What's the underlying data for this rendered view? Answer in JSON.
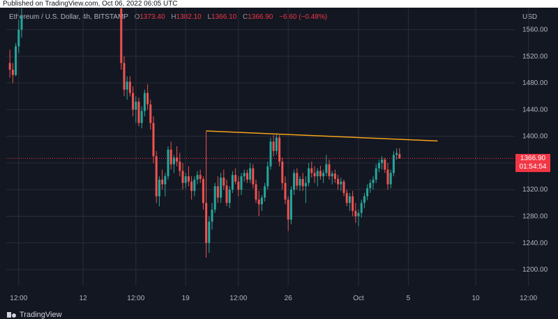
{
  "header": {
    "published": "Published on TradingView.com, Oct 06, 2022 06:05 UTC"
  },
  "legend": {
    "symbol": "Ethereum / U.S. Dollar, 4h, BITSTAMP",
    "open_label": "O",
    "open": "1373.40",
    "high_label": "H",
    "high": "1382.10",
    "low_label": "L",
    "low": "1366.10",
    "close_label": "C",
    "close": "1366.90",
    "change": "−6.60 (−0.48%)"
  },
  "axis": {
    "currency": "USD"
  },
  "price_tag": {
    "price": "1366.90",
    "countdown": "01:54:54"
  },
  "brand": {
    "name": "TradingView"
  },
  "colors": {
    "background": "#131722",
    "grid": "#2a2e39",
    "up": "#26a69a",
    "down": "#ef5350",
    "trendline": "#f7a21b",
    "price_line": "#f23645",
    "axis_text": "#b2b5be"
  },
  "chart_data": {
    "type": "candlestick",
    "yaxis": {
      "ticks": [
        1200,
        1240,
        1280,
        1320,
        1360,
        1400,
        1440,
        1480,
        1520,
        1560
      ],
      "tick_labels": [
        "1200.00",
        "1240.00",
        "1280.00",
        "1320.00",
        "1360.00",
        "1400.00",
        "1440.00",
        "1480.00",
        "1520.00",
        "1560.00"
      ],
      "range": [
        1176,
        1592
      ]
    },
    "xaxis": {
      "tick_labels": [
        "12:00",
        "12",
        "12:00",
        "19",
        "12:00",
        "26",
        "Oct",
        "5",
        "10",
        "12:00"
      ],
      "tick_bar_index": [
        4,
        26,
        44,
        61,
        79,
        96,
        120,
        137,
        160,
        178
      ]
    },
    "last_price": 1366.9,
    "trendline": {
      "from": [
        68,
        1408
      ],
      "to": [
        147,
        1393
      ]
    },
    "candles": [
      [
        1,
        1510,
        1530,
        1488,
        1500
      ],
      [
        2,
        1500,
        1510,
        1480,
        1492
      ],
      [
        3,
        1492,
        1540,
        1490,
        1535
      ],
      [
        4,
        1535,
        1575,
        1525,
        1560
      ],
      [
        5,
        1560,
        1592,
        1548,
        1580
      ],
      [
        39,
        1592,
        1592,
        1500,
        1510
      ],
      [
        40,
        1510,
        1520,
        1460,
        1470
      ],
      [
        41,
        1470,
        1490,
        1455,
        1482
      ],
      [
        42,
        1482,
        1490,
        1460,
        1465
      ],
      [
        43,
        1465,
        1475,
        1430,
        1440
      ],
      [
        44,
        1440,
        1460,
        1420,
        1452
      ],
      [
        45,
        1452,
        1458,
        1415,
        1420
      ],
      [
        46,
        1420,
        1445,
        1412,
        1438
      ],
      [
        47,
        1438,
        1470,
        1430,
        1465
      ],
      [
        48,
        1465,
        1478,
        1440,
        1448
      ],
      [
        49,
        1448,
        1455,
        1410,
        1420
      ],
      [
        50,
        1420,
        1430,
        1360,
        1370
      ],
      [
        51,
        1370,
        1378,
        1300,
        1310
      ],
      [
        52,
        1310,
        1340,
        1295,
        1335
      ],
      [
        53,
        1335,
        1350,
        1320,
        1328
      ],
      [
        54,
        1328,
        1345,
        1310,
        1340
      ],
      [
        55,
        1340,
        1385,
        1335,
        1380
      ],
      [
        56,
        1380,
        1392,
        1350,
        1358
      ],
      [
        57,
        1358,
        1372,
        1345,
        1368
      ],
      [
        58,
        1368,
        1385,
        1355,
        1362
      ],
      [
        59,
        1362,
        1375,
        1340,
        1348
      ],
      [
        60,
        1348,
        1360,
        1320,
        1330
      ],
      [
        61,
        1330,
        1345,
        1322,
        1340
      ],
      [
        62,
        1340,
        1355,
        1325,
        1332
      ],
      [
        63,
        1332,
        1340,
        1305,
        1318
      ],
      [
        64,
        1318,
        1340,
        1310,
        1335
      ],
      [
        65,
        1335,
        1348,
        1328,
        1342
      ],
      [
        66,
        1342,
        1350,
        1330,
        1336
      ],
      [
        67,
        1336,
        1340,
        1290,
        1300
      ],
      [
        68,
        1300,
        1408,
        1218,
        1240
      ],
      [
        69,
        1240,
        1280,
        1225,
        1272
      ],
      [
        70,
        1272,
        1300,
        1260,
        1290
      ],
      [
        71,
        1290,
        1330,
        1285,
        1325
      ],
      [
        72,
        1325,
        1340,
        1300,
        1308
      ],
      [
        73,
        1308,
        1345,
        1300,
        1338
      ],
      [
        74,
        1338,
        1350,
        1320,
        1326
      ],
      [
        75,
        1326,
        1335,
        1295,
        1300
      ],
      [
        76,
        1300,
        1325,
        1292,
        1320
      ],
      [
        77,
        1320,
        1348,
        1315,
        1342
      ],
      [
        78,
        1342,
        1352,
        1328,
        1332
      ],
      [
        79,
        1332,
        1340,
        1310,
        1320
      ],
      [
        80,
        1320,
        1345,
        1312,
        1340
      ],
      [
        81,
        1340,
        1350,
        1332,
        1345
      ],
      [
        82,
        1345,
        1350,
        1330,
        1335
      ],
      [
        83,
        1335,
        1360,
        1330,
        1352
      ],
      [
        84,
        1352,
        1358,
        1322,
        1328
      ],
      [
        85,
        1328,
        1335,
        1300,
        1305
      ],
      [
        86,
        1305,
        1318,
        1280,
        1298
      ],
      [
        87,
        1298,
        1312,
        1288,
        1308
      ],
      [
        88,
        1308,
        1330,
        1302,
        1325
      ],
      [
        89,
        1325,
        1362,
        1320,
        1355
      ],
      [
        90,
        1355,
        1398,
        1350,
        1392
      ],
      [
        91,
        1392,
        1402,
        1370,
        1378
      ],
      [
        92,
        1378,
        1404,
        1372,
        1398
      ],
      [
        93,
        1398,
        1402,
        1355,
        1362
      ],
      [
        94,
        1362,
        1368,
        1320,
        1330
      ],
      [
        95,
        1330,
        1340,
        1298,
        1305
      ],
      [
        96,
        1305,
        1310,
        1258,
        1275
      ],
      [
        97,
        1275,
        1325,
        1268,
        1320
      ],
      [
        98,
        1320,
        1350,
        1312,
        1345
      ],
      [
        99,
        1345,
        1352,
        1320,
        1326
      ],
      [
        100,
        1326,
        1340,
        1318,
        1336
      ],
      [
        101,
        1336,
        1345,
        1318,
        1325
      ],
      [
        102,
        1325,
        1340,
        1300,
        1330
      ],
      [
        103,
        1330,
        1360,
        1325,
        1352
      ],
      [
        104,
        1352,
        1362,
        1338,
        1345
      ],
      [
        105,
        1345,
        1355,
        1330,
        1340
      ],
      [
        106,
        1340,
        1352,
        1325,
        1348
      ],
      [
        107,
        1348,
        1356,
        1335,
        1340
      ],
      [
        108,
        1340,
        1350,
        1330,
        1345
      ],
      [
        109,
        1345,
        1372,
        1340,
        1358
      ],
      [
        110,
        1358,
        1365,
        1335,
        1340
      ],
      [
        111,
        1340,
        1348,
        1328,
        1344
      ],
      [
        112,
        1344,
        1350,
        1330,
        1336
      ],
      [
        113,
        1336,
        1342,
        1320,
        1328
      ],
      [
        114,
        1328,
        1338,
        1318,
        1332
      ],
      [
        115,
        1332,
        1335,
        1310,
        1315
      ],
      [
        116,
        1315,
        1320,
        1295,
        1300
      ],
      [
        117,
        1300,
        1315,
        1288,
        1310
      ],
      [
        118,
        1310,
        1318,
        1280,
        1288
      ],
      [
        119,
        1288,
        1300,
        1270,
        1280
      ],
      [
        120,
        1280,
        1290,
        1265,
        1285
      ],
      [
        121,
        1285,
        1305,
        1278,
        1300
      ],
      [
        122,
        1300,
        1315,
        1292,
        1310
      ],
      [
        123,
        1310,
        1328,
        1304,
        1322
      ],
      [
        124,
        1322,
        1335,
        1315,
        1330
      ],
      [
        125,
        1330,
        1340,
        1320,
        1335
      ],
      [
        126,
        1335,
        1358,
        1330,
        1352
      ],
      [
        127,
        1352,
        1365,
        1346,
        1360
      ],
      [
        128,
        1360,
        1370,
        1350,
        1365
      ],
      [
        129,
        1365,
        1368,
        1345,
        1350
      ],
      [
        130,
        1350,
        1360,
        1320,
        1328
      ],
      [
        131,
        1328,
        1350,
        1322,
        1345
      ],
      [
        132,
        1345,
        1378,
        1340,
        1372
      ],
      [
        133,
        1372,
        1382,
        1365,
        1375
      ],
      [
        134,
        1373.4,
        1382.1,
        1366.1,
        1366.9
      ]
    ]
  }
}
